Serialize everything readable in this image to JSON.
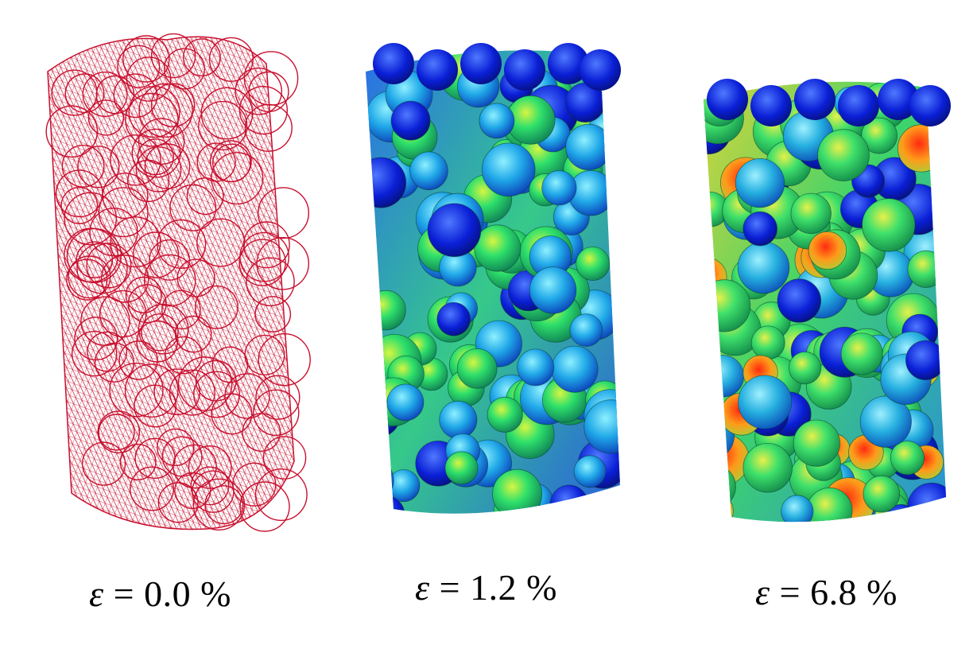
{
  "figure": {
    "panels": [
      {
        "id": "undeformed",
        "style": "wireframe-mesh",
        "colors": {
          "mesh": "#c8102e",
          "background": "#ffffff"
        },
        "caption": {
          "symbol": "ε",
          "relation": " = ",
          "value": "0.0",
          "unit": " %"
        }
      },
      {
        "id": "strain-1",
        "style": "contour-field",
        "colors": {
          "low": "#0a1fd6",
          "mid": "#2ee06b",
          "high": "#ff3a1a"
        },
        "caption": {
          "symbol": "ε",
          "relation": " = ",
          "value": "1.2",
          "unit": " %"
        }
      },
      {
        "id": "strain-2",
        "style": "contour-field",
        "colors": {
          "low": "#0a1fd6",
          "mid": "#2ee06b",
          "high": "#ff3a1a"
        },
        "caption": {
          "symbol": "ε",
          "relation": " = ",
          "value": "6.8",
          "unit": " %"
        }
      }
    ]
  }
}
